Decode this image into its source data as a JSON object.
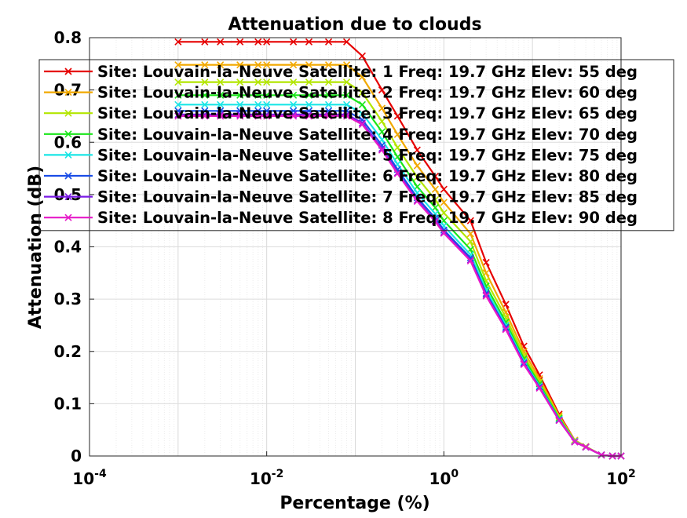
{
  "chart_data": {
    "type": "line",
    "title": "Attenuation due to clouds",
    "xlabel": "Percentage (%)",
    "ylabel": "Attenuation (dB)",
    "xscale": "log",
    "xlim": [
      0.0001,
      100
    ],
    "ylim": [
      0,
      0.8
    ],
    "x_ticks": [
      {
        "value": 0.0001,
        "base": "10",
        "exp": "-4"
      },
      {
        "value": 0.01,
        "base": "10",
        "exp": "-2"
      },
      {
        "value": 1,
        "base": "10",
        "exp": "0"
      },
      {
        "value": 100,
        "base": "10",
        "exp": "2"
      }
    ],
    "y_ticks": [
      "0",
      "0.1",
      "0.2",
      "0.3",
      "0.4",
      "0.5",
      "0.6",
      "0.7",
      "0.8"
    ],
    "grid": true,
    "legend_position": "top-right",
    "marker": "x",
    "x": [
      0.001,
      0.002,
      0.003,
      0.005,
      0.008,
      0.01,
      0.02,
      0.03,
      0.05,
      0.08,
      0.12,
      0.2,
      0.3,
      0.5,
      0.8,
      1,
      2,
      3,
      5,
      8,
      12,
      20,
      30,
      40,
      60,
      80,
      100
    ],
    "series": [
      {
        "name": "Site: Louvain-la-Neuve Satellite: 1 Freq: 19.7 GHz Elev: 55 deg",
        "color": "#e60000",
        "values": [
          0.792,
          0.792,
          0.792,
          0.792,
          0.792,
          0.792,
          0.792,
          0.792,
          0.792,
          0.792,
          0.765,
          0.7,
          0.65,
          0.585,
          0.535,
          0.51,
          0.45,
          0.37,
          0.29,
          0.21,
          0.155,
          0.08,
          0.03,
          0.018,
          0.002,
          0.0,
          0.0
        ]
      },
      {
        "name": "Site: Louvain-la-Neuve Satellite: 2 Freq: 19.7 GHz Elev: 60 deg",
        "color": "#f2a900",
        "values": [
          0.748,
          0.748,
          0.748,
          0.748,
          0.748,
          0.748,
          0.748,
          0.748,
          0.748,
          0.748,
          0.725,
          0.665,
          0.615,
          0.555,
          0.51,
          0.485,
          0.425,
          0.35,
          0.275,
          0.2,
          0.148,
          0.077,
          0.03,
          0.018,
          0.002,
          0.0,
          0.0
        ]
      },
      {
        "name": "Site: Louvain-la-Neuve Satellite: 3 Freq: 19.7 GHz Elev: 65 deg",
        "color": "#b3e600",
        "values": [
          0.715,
          0.715,
          0.715,
          0.715,
          0.715,
          0.715,
          0.715,
          0.715,
          0.715,
          0.715,
          0.695,
          0.64,
          0.59,
          0.533,
          0.49,
          0.465,
          0.41,
          0.335,
          0.265,
          0.192,
          0.142,
          0.074,
          0.029,
          0.018,
          0.002,
          0.0,
          0.0
        ]
      },
      {
        "name": "Site: Louvain-la-Neuve Satellite: 4 Freq: 19.7 GHz Elev: 70 deg",
        "color": "#19e619",
        "values": [
          0.69,
          0.69,
          0.69,
          0.69,
          0.69,
          0.69,
          0.69,
          0.69,
          0.69,
          0.69,
          0.672,
          0.62,
          0.572,
          0.515,
          0.475,
          0.45,
          0.395,
          0.325,
          0.256,
          0.186,
          0.138,
          0.072,
          0.028,
          0.017,
          0.002,
          0.0,
          0.0
        ]
      },
      {
        "name": "Site: Louvain-la-Neuve Satellite: 5 Freq: 19.7 GHz Elev: 75 deg",
        "color": "#1ae6e6",
        "values": [
          0.672,
          0.672,
          0.672,
          0.672,
          0.672,
          0.672,
          0.672,
          0.672,
          0.672,
          0.672,
          0.655,
          0.605,
          0.558,
          0.503,
          0.463,
          0.44,
          0.385,
          0.317,
          0.25,
          0.181,
          0.134,
          0.07,
          0.028,
          0.017,
          0.002,
          0.0,
          0.0
        ]
      },
      {
        "name": "Site: Louvain-la-Neuve Satellite: 6 Freq: 19.7 GHz Elev: 80 deg",
        "color": "#1a4de6",
        "values": [
          0.66,
          0.66,
          0.66,
          0.66,
          0.66,
          0.66,
          0.66,
          0.66,
          0.66,
          0.66,
          0.643,
          0.594,
          0.548,
          0.494,
          0.455,
          0.432,
          0.379,
          0.311,
          0.246,
          0.178,
          0.132,
          0.069,
          0.027,
          0.017,
          0.002,
          0.0,
          0.0
        ]
      },
      {
        "name": "Site: Louvain-la-Neuve Satellite: 7 Freq: 19.7 GHz Elev: 85 deg",
        "color": "#7a1ae6",
        "values": [
          0.653,
          0.653,
          0.653,
          0.653,
          0.653,
          0.653,
          0.653,
          0.653,
          0.653,
          0.653,
          0.637,
          0.588,
          0.542,
          0.489,
          0.45,
          0.428,
          0.375,
          0.308,
          0.243,
          0.176,
          0.13,
          0.068,
          0.027,
          0.017,
          0.002,
          0.0,
          0.0
        ]
      },
      {
        "name": "Site: Louvain-la-Neuve Satellite: 8 Freq: 19.7 GHz Elev: 90 deg",
        "color": "#e619c8",
        "values": [
          0.65,
          0.65,
          0.65,
          0.65,
          0.65,
          0.65,
          0.65,
          0.65,
          0.65,
          0.65,
          0.634,
          0.585,
          0.54,
          0.487,
          0.448,
          0.426,
          0.373,
          0.306,
          0.242,
          0.175,
          0.13,
          0.068,
          0.027,
          0.017,
          0.002,
          0.0,
          0.0
        ]
      }
    ]
  }
}
